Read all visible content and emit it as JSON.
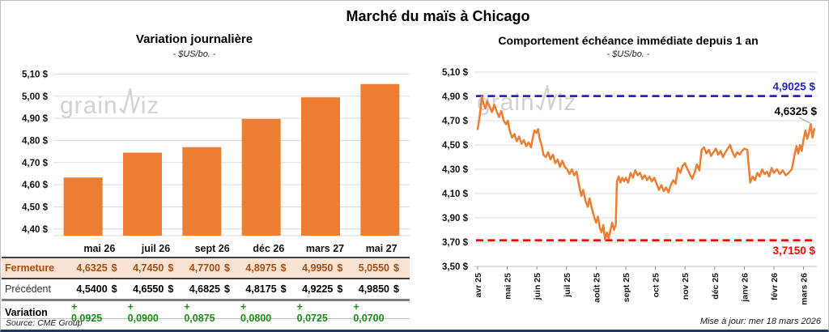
{
  "page": {
    "title": "Marché du maïs à Chicago",
    "watermark_parts": {
      "left": "grain",
      "right": "iz"
    },
    "source": "Source: CME Group",
    "updated": "Mise à jour: mer 18 mars 2026"
  },
  "colors": {
    "accent_orange": "#ED7D31",
    "ref_high_blue": "#2222CC",
    "ref_low_red": "#FF0000",
    "variation_green": "#1C8C1C",
    "fermeture_text": "#A34E12",
    "fermeture_bg": "#FBE3D3",
    "footer_navy": "#1F3864"
  },
  "chart_data": [
    {
      "type": "bar",
      "title": "Variation journalière",
      "subtitle": "- $US/bo. -",
      "categories": [
        "mai 26",
        "juil 26",
        "sept 26",
        "déc 26",
        "mars 27",
        "mai 27"
      ],
      "values": [
        4.6325,
        4.745,
        4.77,
        4.8975,
        4.995,
        5.055
      ],
      "ylim": [
        4.37,
        5.12
      ],
      "yticks": [
        4.4,
        4.5,
        4.6,
        4.7,
        4.8,
        4.9,
        5.0,
        5.1
      ],
      "grid": true,
      "bar_color": "#ED7D31"
    },
    {
      "type": "line",
      "title": "Comportement échéance immédiate depuis 1 an",
      "subtitle": "- $US/bo. -",
      "x_labels": [
        "avr 25",
        "mai 25",
        "juin 25",
        "juil 25",
        "août 25",
        "sept 25",
        "oct 25",
        "nov 25",
        "déc 25",
        "janv 26",
        "févr 26",
        "mars 26"
      ],
      "ylim": [
        3.5,
        5.1
      ],
      "yticks": [
        3.5,
        3.7,
        3.9,
        4.1,
        4.3,
        4.5,
        4.7,
        4.9,
        5.1
      ],
      "grid": true,
      "legend": "none",
      "series": [
        {
          "name": "échéance immédiate",
          "color": "#ED7D31",
          "points": [
            [
              0.0,
              4.63
            ],
            [
              0.05,
              4.7
            ],
            [
              0.1,
              4.8
            ],
            [
              0.14,
              4.9
            ],
            [
              0.2,
              4.84
            ],
            [
              0.26,
              4.8
            ],
            [
              0.32,
              4.86
            ],
            [
              0.4,
              4.82
            ],
            [
              0.48,
              4.77
            ],
            [
              0.56,
              4.83
            ],
            [
              0.64,
              4.78
            ],
            [
              0.72,
              4.73
            ],
            [
              0.8,
              4.78
            ],
            [
              0.88,
              4.7
            ],
            [
              0.96,
              4.67
            ],
            [
              1.02,
              4.7
            ],
            [
              1.08,
              4.62
            ],
            [
              1.16,
              4.56
            ],
            [
              1.24,
              4.59
            ],
            [
              1.32,
              4.53
            ],
            [
              1.4,
              4.57
            ],
            [
              1.48,
              4.51
            ],
            [
              1.56,
              4.54
            ],
            [
              1.64,
              4.49
            ],
            [
              1.72,
              4.52
            ],
            [
              1.8,
              4.48
            ],
            [
              1.86,
              4.56
            ],
            [
              1.92,
              4.62
            ],
            [
              1.98,
              4.6
            ],
            [
              2.04,
              4.63
            ],
            [
              2.1,
              4.54
            ],
            [
              2.16,
              4.5
            ],
            [
              2.22,
              4.42
            ],
            [
              2.3,
              4.4
            ],
            [
              2.38,
              4.44
            ],
            [
              2.46,
              4.38
            ],
            [
              2.54,
              4.42
            ],
            [
              2.62,
              4.35
            ],
            [
              2.7,
              4.38
            ],
            [
              2.78,
              4.32
            ],
            [
              2.86,
              4.37
            ],
            [
              2.94,
              4.32
            ],
            [
              3.02,
              4.3
            ],
            [
              3.1,
              4.26
            ],
            [
              3.18,
              4.3
            ],
            [
              3.26,
              4.25
            ],
            [
              3.34,
              4.28
            ],
            [
              3.42,
              4.17
            ],
            [
              3.5,
              4.08
            ],
            [
              3.56,
              4.13
            ],
            [
              3.64,
              4.04
            ],
            [
              3.72,
              3.99
            ],
            [
              3.78,
              4.06
            ],
            [
              3.86,
              3.97
            ],
            [
              3.94,
              3.9
            ],
            [
              4.0,
              3.86
            ],
            [
              4.06,
              3.91
            ],
            [
              4.12,
              3.82
            ],
            [
              4.18,
              3.78
            ],
            [
              4.24,
              3.84
            ],
            [
              4.3,
              3.72
            ],
            [
              4.36,
              3.78
            ],
            [
              4.42,
              3.73
            ],
            [
              4.48,
              3.8
            ],
            [
              4.54,
              3.86
            ],
            [
              4.6,
              3.8
            ],
            [
              4.66,
              3.84
            ],
            [
              4.7,
              4.2
            ],
            [
              4.76,
              4.24
            ],
            [
              4.82,
              4.19
            ],
            [
              4.88,
              4.23
            ],
            [
              4.94,
              4.2
            ],
            [
              5.0,
              4.23
            ],
            [
              5.08,
              4.19
            ],
            [
              5.16,
              4.27
            ],
            [
              5.24,
              4.23
            ],
            [
              5.32,
              4.29
            ],
            [
              5.4,
              4.25
            ],
            [
              5.48,
              4.27
            ],
            [
              5.56,
              4.22
            ],
            [
              5.64,
              4.25
            ],
            [
              5.72,
              4.21
            ],
            [
              5.8,
              4.24
            ],
            [
              5.88,
              4.2
            ],
            [
              5.96,
              4.23
            ],
            [
              6.04,
              4.18
            ],
            [
              6.12,
              4.13
            ],
            [
              6.2,
              4.17
            ],
            [
              6.28,
              4.12
            ],
            [
              6.36,
              4.15
            ],
            [
              6.44,
              4.11
            ],
            [
              6.52,
              4.17
            ],
            [
              6.6,
              4.21
            ],
            [
              6.68,
              4.18
            ],
            [
              6.76,
              4.31
            ],
            [
              6.84,
              4.27
            ],
            [
              6.92,
              4.33
            ],
            [
              7.0,
              4.35
            ],
            [
              7.08,
              4.3
            ],
            [
              7.16,
              4.26
            ],
            [
              7.24,
              4.22
            ],
            [
              7.32,
              4.27
            ],
            [
              7.4,
              4.34
            ],
            [
              7.48,
              4.29
            ],
            [
              7.56,
              4.46
            ],
            [
              7.64,
              4.48
            ],
            [
              7.72,
              4.43
            ],
            [
              7.8,
              4.46
            ],
            [
              7.88,
              4.41
            ],
            [
              7.96,
              4.44
            ],
            [
              8.04,
              4.47
            ],
            [
              8.12,
              4.42
            ],
            [
              8.2,
              4.45
            ],
            [
              8.28,
              4.4
            ],
            [
              8.36,
              4.44
            ],
            [
              8.44,
              4.47
            ],
            [
              8.52,
              4.5
            ],
            [
              8.6,
              4.44
            ],
            [
              8.68,
              4.4
            ],
            [
              8.76,
              4.44
            ],
            [
              8.84,
              4.42
            ],
            [
              8.92,
              4.45
            ],
            [
              9.0,
              4.47
            ],
            [
              9.1,
              4.46
            ],
            [
              9.2,
              4.19
            ],
            [
              9.28,
              4.24
            ],
            [
              9.36,
              4.21
            ],
            [
              9.44,
              4.27
            ],
            [
              9.52,
              4.24
            ],
            [
              9.6,
              4.3
            ],
            [
              9.68,
              4.26
            ],
            [
              9.76,
              4.28
            ],
            [
              9.84,
              4.24
            ],
            [
              9.92,
              4.31
            ],
            [
              10.0,
              4.27
            ],
            [
              10.1,
              4.3
            ],
            [
              10.2,
              4.26
            ],
            [
              10.3,
              4.29
            ],
            [
              10.4,
              4.25
            ],
            [
              10.5,
              4.27
            ],
            [
              10.6,
              4.3
            ],
            [
              10.7,
              4.42
            ],
            [
              10.76,
              4.49
            ],
            [
              10.82,
              4.43
            ],
            [
              10.88,
              4.5
            ],
            [
              10.94,
              4.45
            ],
            [
              11.0,
              4.55
            ],
            [
              11.06,
              4.62
            ],
            [
              11.12,
              4.55
            ],
            [
              11.18,
              4.6
            ],
            [
              11.24,
              4.67
            ],
            [
              11.3,
              4.56
            ],
            [
              11.36,
              4.6325
            ]
          ]
        }
      ],
      "ref_lines": [
        {
          "value": 4.9025,
          "label": "4,9025 $",
          "color": "#2222CC",
          "style": "dashed",
          "label_pos": "above"
        },
        {
          "value": 3.715,
          "label": "3,7150 $",
          "color": "#FF0000",
          "style": "dashed",
          "label_pos": "below"
        }
      ],
      "last_point": {
        "value": 4.6325,
        "label": "4,6325 $"
      }
    }
  ],
  "table": {
    "columns": [
      "mai 26",
      "juil 26",
      "sept 26",
      "déc 26",
      "mars 27",
      "mai 27"
    ],
    "rows": [
      {
        "label": "Fermeture",
        "unit": "$",
        "values": [
          "4,6325",
          "4,7450",
          "4,7700",
          "4,8975",
          "4,9950",
          "5,0550"
        ]
      },
      {
        "label": "Précédent",
        "unit": "$",
        "values": [
          "4,5400",
          "4,6550",
          "4,6825",
          "4,8175",
          "4,9225",
          "4,9850"
        ]
      },
      {
        "label": "Variation",
        "unit": "",
        "values": [
          "+ 0,0925",
          "+ 0,0900",
          "+ 0,0875",
          "+ 0,0800",
          "+ 0,0725",
          "+ 0,0700"
        ]
      }
    ]
  }
}
